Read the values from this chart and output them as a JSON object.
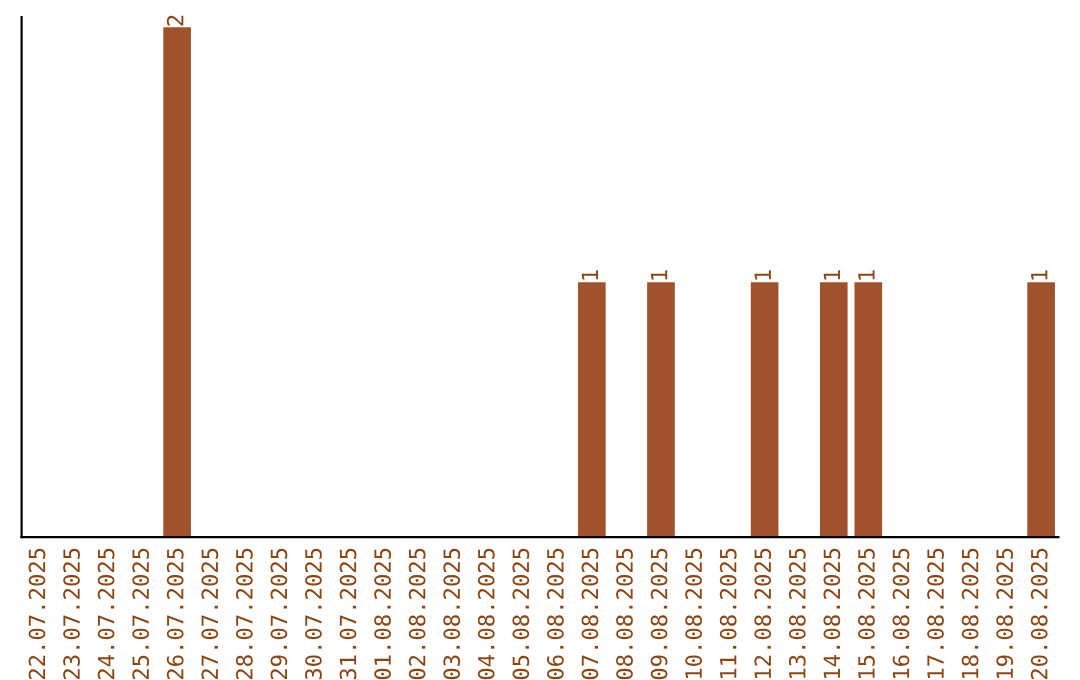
{
  "chart_data": {
    "type": "bar",
    "categories": [
      "22.07.2025",
      "23.07.2025",
      "24.07.2025",
      "25.07.2025",
      "26.07.2025",
      "27.07.2025",
      "28.07.2025",
      "29.07.2025",
      "30.07.2025",
      "31.07.2025",
      "01.08.2025",
      "02.08.2025",
      "03.08.2025",
      "04.08.2025",
      "05.08.2025",
      "06.08.2025",
      "07.08.2025",
      "08.08.2025",
      "09.08.2025",
      "10.08.2025",
      "11.08.2025",
      "12.08.2025",
      "13.08.2025",
      "14.08.2025",
      "15.08.2025",
      "16.08.2025",
      "17.08.2025",
      "18.08.2025",
      "19.08.2025",
      "20.08.2025"
    ],
    "values": [
      0,
      0,
      0,
      0,
      2,
      0,
      0,
      0,
      0,
      0,
      0,
      0,
      0,
      0,
      0,
      0,
      1,
      0,
      1,
      0,
      0,
      1,
      0,
      1,
      1,
      0,
      0,
      0,
      0,
      1
    ],
    "value_labels": [
      null,
      null,
      null,
      null,
      "2",
      null,
      null,
      null,
      null,
      null,
      null,
      null,
      null,
      null,
      null,
      null,
      "1",
      null,
      "1",
      null,
      null,
      "1",
      null,
      "1",
      "1",
      null,
      null,
      null,
      null,
      "1"
    ],
    "color": "#a0522d",
    "tick_labels": "x",
    "grid": false,
    "legend": false
  }
}
